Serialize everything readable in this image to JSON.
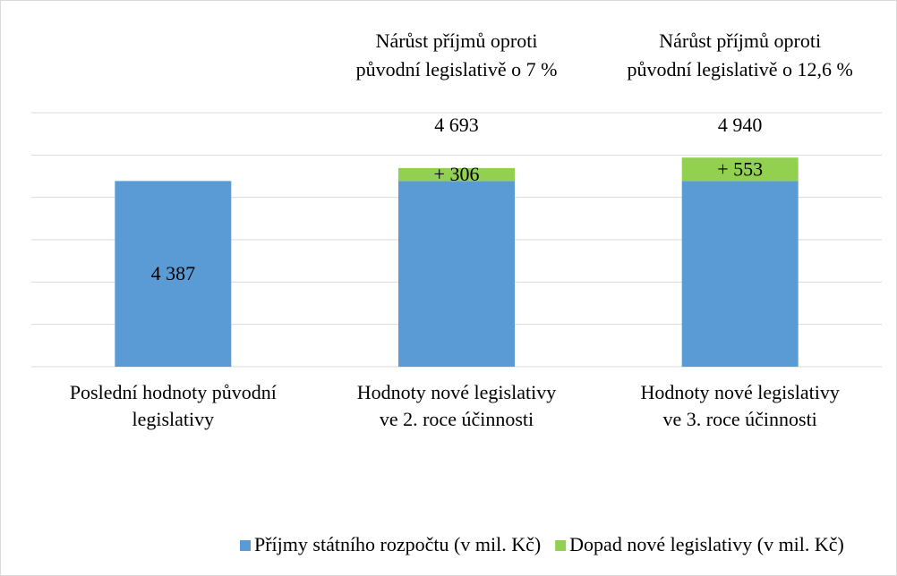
{
  "chart_data": {
    "type": "stacked_bar",
    "categories": [
      [
        "Poslední hodnoty původní",
        "legislativy"
      ],
      [
        "Hodnoty nové legislativy",
        "ve 2. roce účinnosti"
      ],
      [
        "Hodnoty nové legislativy",
        "ve 3. roce účinnosti"
      ]
    ],
    "series": [
      {
        "name": "Příjmy státního rozpočtu (v mil. Kč)",
        "color": "#5b9bd5",
        "values": [
          4387,
          4387,
          4387
        ],
        "value_labels": [
          "4 387",
          null,
          null
        ]
      },
      {
        "name": "Dopad nové legislativy (v mil. Kč)",
        "color": "#92d050",
        "values": [
          null,
          306,
          553
        ],
        "value_labels": [
          null,
          "+ 306",
          "+ 553"
        ]
      }
    ],
    "totals": [
      null,
      4693,
      4940
    ],
    "total_labels": [
      null,
      "4 693",
      "4 940"
    ],
    "annotations": [
      null,
      [
        "Nárůst příjmů oproti",
        "původní legislativě  o 7 %"
      ],
      [
        "Nárůst příjmů oproti",
        "původní legislativě  o 12,6 %"
      ]
    ],
    "ylim": [
      0,
      6000
    ],
    "yticks": [
      0,
      1000,
      2000,
      3000,
      4000,
      5000,
      6000
    ],
    "grid": true,
    "legend": "bottom"
  }
}
